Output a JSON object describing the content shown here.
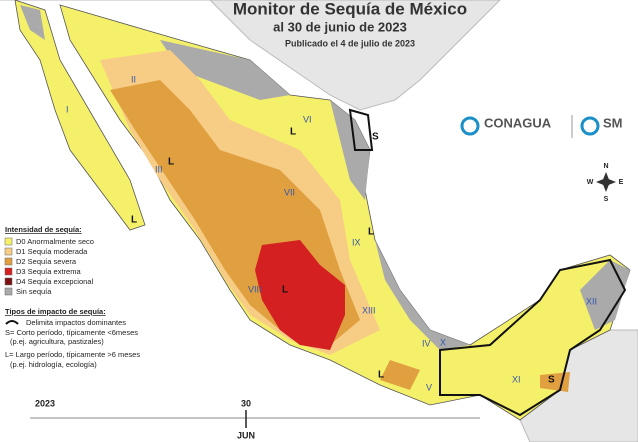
{
  "header": {
    "title": "Monitor de Sequía de México",
    "date": "al 30 de junio de 2023",
    "published": "Publicado el 4 de julio de 2023"
  },
  "logos": [
    "CONAGUA",
    "SM"
  ],
  "compass": {
    "n": "N",
    "s": "S",
    "e": "E",
    "w": "W"
  },
  "regions": [
    "I",
    "II",
    "III",
    "IV",
    "V",
    "VI",
    "VII",
    "VIII",
    "IX",
    "X",
    "XI",
    "XII",
    "XIII"
  ],
  "impacts": [
    "L",
    "S",
    "L",
    "L",
    "L",
    "L",
    "L",
    "S"
  ],
  "legend": {
    "intensity_title": "Intensidad de sequía:",
    "items": [
      {
        "label": "D0 Anormalmente seco",
        "color": "#f5f06a"
      },
      {
        "label": "D1 Sequía moderada",
        "color": "#f7cd86"
      },
      {
        "label": "D2 Sequía severa",
        "color": "#e0a040"
      },
      {
        "label": "D3 Sequía extrema",
        "color": "#d42020"
      },
      {
        "label": "D4 Sequía excepcional",
        "color": "#7a1010"
      },
      {
        "label": "Sin sequía",
        "color": "#aaaaaa"
      }
    ],
    "impact_title": "Tipos de impacto de sequía:",
    "impact_lines": [
      "Delimita impactos dominantes",
      "S= Corto período, típicamente <6meses",
      "(p.ej. agricultura, pastizales)",
      "L= Largo período, típicamente >6 meses",
      "(p.ej. hidrología, ecología)"
    ]
  },
  "timeline": {
    "year": "2023",
    "day": "30",
    "month": "JUN"
  }
}
